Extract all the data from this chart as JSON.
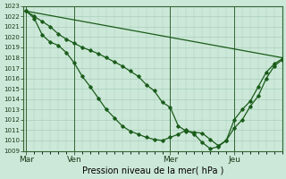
{
  "xlabel": "Pression niveau de la mer( hPa )",
  "ylim": [
    1009,
    1023
  ],
  "yticks": [
    1009,
    1010,
    1011,
    1012,
    1013,
    1014,
    1015,
    1016,
    1017,
    1018,
    1019,
    1020,
    1021,
    1022,
    1023
  ],
  "day_labels": [
    "Mar",
    "Ven",
    "Mer",
    "Jeu"
  ],
  "day_positions": [
    0,
    18,
    54,
    78
  ],
  "xlim": [
    -1,
    96
  ],
  "bg_color": "#cce8d8",
  "grid_color": "#aacfbc",
  "line_color": "#1a5c1a",
  "vline_color": "#336633",
  "line1_x": [
    0,
    3,
    6,
    9,
    12,
    15,
    18,
    21,
    24,
    27,
    30,
    33,
    36,
    39,
    42,
    45,
    48,
    51,
    54,
    57,
    60,
    63,
    66,
    69,
    72,
    75,
    78,
    81,
    84,
    87,
    90,
    93,
    96
  ],
  "line1_y": [
    1022.5,
    1022.0,
    1021.5,
    1021.0,
    1020.3,
    1019.8,
    1019.4,
    1019.0,
    1018.7,
    1018.4,
    1018.0,
    1017.6,
    1017.2,
    1016.7,
    1016.2,
    1015.4,
    1014.8,
    1013.7,
    1013.2,
    1011.4,
    1010.9,
    1010.8,
    1010.7,
    1010.1,
    1009.5,
    1010.0,
    1011.2,
    1012.0,
    1013.3,
    1014.3,
    1016.0,
    1017.2,
    1017.8
  ],
  "line2_x": [
    0,
    3,
    6,
    9,
    12,
    15,
    18,
    21,
    24,
    27,
    30,
    33,
    36,
    39,
    42,
    45,
    48,
    51,
    54,
    57,
    60,
    63,
    66,
    69,
    72,
    75,
    78,
    81,
    84,
    87,
    90,
    93,
    96
  ],
  "line2_y": [
    1022.5,
    1021.8,
    1020.2,
    1019.5,
    1019.2,
    1018.5,
    1017.5,
    1016.2,
    1015.2,
    1014.1,
    1013.0,
    1012.2,
    1011.4,
    1010.9,
    1010.6,
    1010.3,
    1010.1,
    1010.0,
    1010.3,
    1010.6,
    1011.0,
    1010.6,
    1009.8,
    1009.2,
    1009.4,
    1010.0,
    1012.0,
    1013.0,
    1013.8,
    1015.2,
    1016.6,
    1017.4,
    1017.9
  ],
  "line3_x": [
    0,
    96
  ],
  "line3_y": [
    1022.5,
    1018.0
  ]
}
